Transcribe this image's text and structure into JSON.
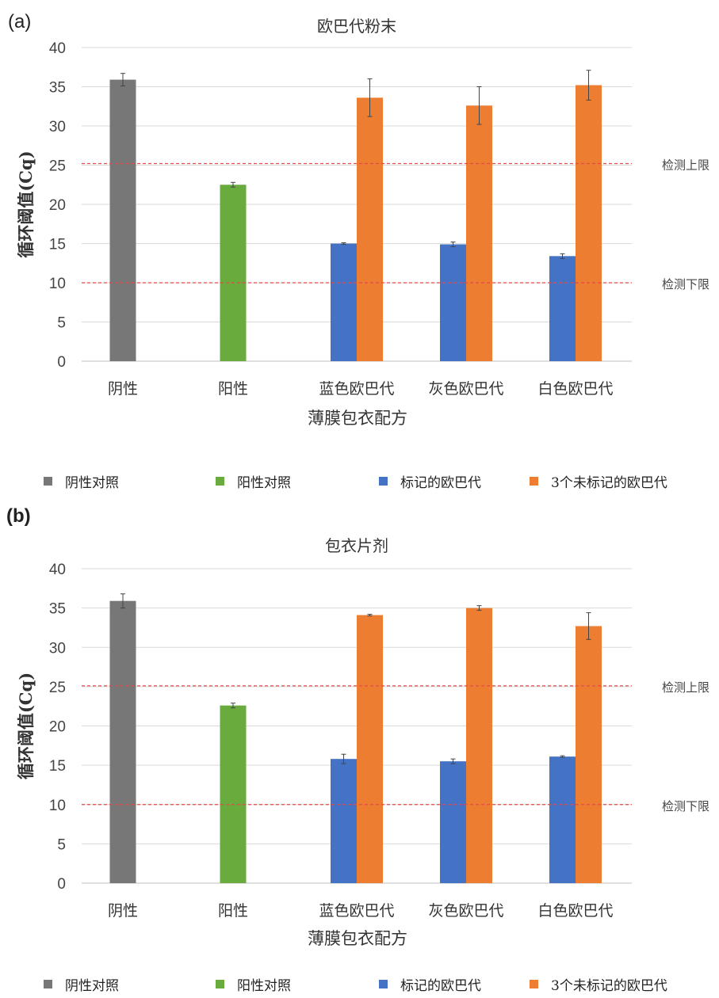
{
  "panels": [
    {
      "label": "(a)"
    },
    {
      "label": "(b)"
    }
  ],
  "colors": {
    "negative": "#777777",
    "positive": "#6aab3e",
    "labeled": "#4472c4",
    "unlabeled": "#ed7d31",
    "limit_line": "#e34a4a"
  },
  "legend": [
    {
      "label": "阴性对照",
      "color": "#777777"
    },
    {
      "label": "阳性对照",
      "color": "#6aab3e"
    },
    {
      "label": "标记的欧巴代",
      "color": "#4472c4"
    },
    {
      "label": "3个未标记的欧巴代",
      "color": "#ed7d31"
    }
  ],
  "chart_data": [
    {
      "type": "bar",
      "title": "欧巴代粉末",
      "xlabel": "薄膜包衣配方",
      "ylabel": "循环阈值(Cq)",
      "ylim": [
        0,
        40
      ],
      "yticks": [
        0,
        5,
        10,
        15,
        20,
        25,
        30,
        35,
        40
      ],
      "grid": true,
      "legend_position": "bottom",
      "categories": [
        "阴性",
        "阳性",
        "蓝色欧巴代",
        "灰色欧巴代",
        "白色欧巴代"
      ],
      "series": [
        {
          "name": "阴性对照",
          "values": [
            35.9,
            null,
            null,
            null,
            null
          ],
          "errors": [
            0.8,
            null,
            null,
            null,
            null
          ]
        },
        {
          "name": "阳性对照",
          "values": [
            null,
            22.5,
            null,
            null,
            null
          ],
          "errors": [
            null,
            0.3,
            null,
            null,
            null
          ]
        },
        {
          "name": "标记的欧巴代",
          "values": [
            null,
            null,
            15.0,
            14.9,
            13.4
          ],
          "errors": [
            null,
            null,
            0.1,
            0.3,
            0.3
          ]
        },
        {
          "name": "3个未标记的欧巴代",
          "values": [
            null,
            null,
            33.6,
            32.6,
            35.2
          ],
          "errors": [
            null,
            null,
            2.4,
            2.4,
            1.9
          ]
        }
      ],
      "reference_lines": [
        {
          "label": "检测上限",
          "y": 25.2
        },
        {
          "label": "检测下限",
          "y": 10.0
        }
      ]
    },
    {
      "type": "bar",
      "title": "包衣片剂",
      "xlabel": "薄膜包衣配方",
      "ylabel": "循环阈值(Cq)",
      "ylim": [
        0,
        40
      ],
      "yticks": [
        0,
        5,
        10,
        15,
        20,
        25,
        30,
        35,
        40
      ],
      "grid": true,
      "legend_position": "bottom",
      "categories": [
        "阴性",
        "阳性",
        "蓝色欧巴代",
        "灰色欧巴代",
        "白色欧巴代"
      ],
      "series": [
        {
          "name": "阴性对照",
          "values": [
            35.9,
            null,
            null,
            null,
            null
          ],
          "errors": [
            0.9,
            null,
            null,
            null,
            null
          ]
        },
        {
          "name": "阳性对照",
          "values": [
            null,
            22.6,
            null,
            null,
            null
          ],
          "errors": [
            null,
            0.3,
            null,
            null,
            null
          ]
        },
        {
          "name": "标记的欧巴代",
          "values": [
            null,
            null,
            15.8,
            15.5,
            16.1
          ],
          "errors": [
            null,
            null,
            0.6,
            0.3,
            0.1
          ]
        },
        {
          "name": "3个未标记的欧巴代",
          "values": [
            null,
            null,
            34.1,
            35.0,
            32.7
          ],
          "errors": [
            null,
            null,
            0.1,
            0.3,
            1.7
          ]
        }
      ],
      "reference_lines": [
        {
          "label": "检测上限",
          "y": 25.1
        },
        {
          "label": "检测下限",
          "y": 10.0
        }
      ]
    }
  ]
}
